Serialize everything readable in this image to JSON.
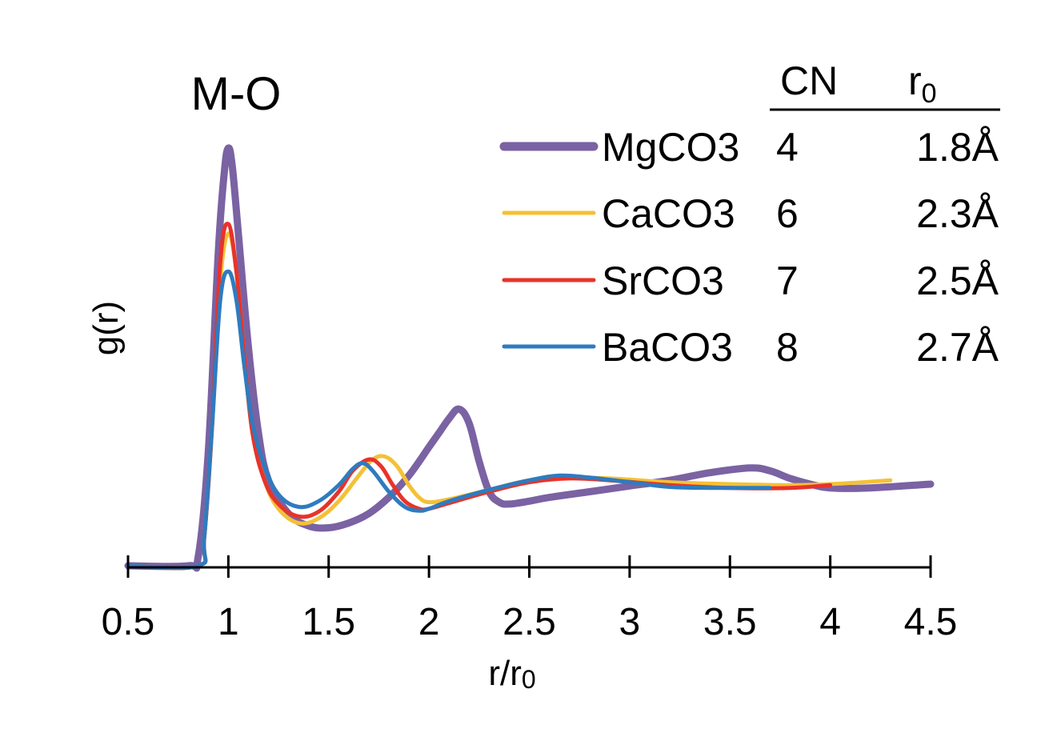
{
  "chart_data": {
    "type": "line",
    "title": "M-O",
    "xlabel": "r/r",
    "xlabel_sub": "0",
    "ylabel": "g(r)",
    "xlim": [
      0.5,
      4.5
    ],
    "ylim": [
      0,
      4.4
    ],
    "y_ticks_shown": false,
    "x_ticks": [
      "0.5",
      "1",
      "1.5",
      "2",
      "2.5",
      "3",
      "3.5",
      "4",
      "4.5"
    ],
    "x_tick_values": [
      0.5,
      1,
      1.5,
      2,
      2.5,
      3,
      3.5,
      4,
      4.5
    ],
    "grid": false,
    "legend_position": "top-right",
    "table": {
      "headers": [
        "CN",
        "r"
      ],
      "header_sub": "0",
      "rows": [
        [
          "4",
          "1.8Å"
        ],
        [
          "6",
          "2.3Å"
        ],
        [
          "7",
          "2.5Å"
        ],
        [
          "8",
          "2.7Å"
        ]
      ]
    },
    "series": [
      {
        "name": "MgCO3",
        "color": "#7a62a3",
        "x": [
          0.5,
          0.8,
          0.85,
          0.9,
          0.95,
          0.98,
          1.0,
          1.02,
          1.05,
          1.1,
          1.15,
          1.2,
          1.3,
          1.4,
          1.5,
          1.6,
          1.7,
          1.8,
          1.9,
          2.0,
          2.05,
          2.1,
          2.15,
          2.2,
          2.25,
          2.3,
          2.35,
          2.4,
          2.5,
          2.6,
          2.8,
          3.0,
          3.2,
          3.4,
          3.6,
          3.7,
          3.8,
          3.9,
          4.0,
          4.2,
          4.5
        ],
        "values": [
          0.0,
          0.0,
          0.1,
          1.2,
          3.3,
          4.15,
          4.4,
          4.2,
          3.5,
          2.3,
          1.4,
          0.9,
          0.55,
          0.42,
          0.4,
          0.45,
          0.55,
          0.72,
          0.95,
          1.25,
          1.4,
          1.55,
          1.65,
          1.5,
          1.1,
          0.78,
          0.67,
          0.65,
          0.68,
          0.72,
          0.78,
          0.84,
          0.9,
          0.98,
          1.03,
          1.0,
          0.92,
          0.86,
          0.82,
          0.82,
          0.86
        ]
      },
      {
        "name": "CaCO3",
        "color": "#f4c136",
        "x": [
          0.5,
          0.85,
          0.88,
          0.92,
          0.96,
          1.0,
          1.04,
          1.08,
          1.12,
          1.18,
          1.25,
          1.35,
          1.45,
          1.55,
          1.65,
          1.72,
          1.78,
          1.84,
          1.9,
          1.95,
          2.0,
          2.1,
          2.3,
          2.5,
          2.7,
          2.9,
          3.2,
          3.5,
          3.8,
          4.0,
          4.3
        ],
        "values": [
          0.0,
          0.0,
          0.3,
          1.5,
          3.0,
          3.5,
          3.1,
          2.2,
          1.4,
          0.9,
          0.6,
          0.45,
          0.5,
          0.68,
          0.95,
          1.12,
          1.15,
          1.05,
          0.85,
          0.72,
          0.67,
          0.7,
          0.8,
          0.9,
          0.93,
          0.92,
          0.88,
          0.86,
          0.85,
          0.86,
          0.9
        ]
      },
      {
        "name": "SrCO3",
        "color": "#e8332a",
        "x": [
          0.5,
          0.85,
          0.88,
          0.92,
          0.96,
          1.0,
          1.04,
          1.08,
          1.12,
          1.18,
          1.25,
          1.35,
          1.45,
          1.55,
          1.62,
          1.7,
          1.76,
          1.82,
          1.88,
          1.95,
          2.0,
          2.1,
          2.3,
          2.5,
          2.7,
          2.9,
          3.2,
          3.5,
          3.8,
          4.0
        ],
        "values": [
          0.0,
          0.0,
          0.3,
          1.5,
          3.2,
          3.6,
          3.1,
          2.2,
          1.4,
          0.9,
          0.65,
          0.52,
          0.57,
          0.78,
          1.0,
          1.12,
          1.05,
          0.85,
          0.68,
          0.6,
          0.6,
          0.66,
          0.78,
          0.88,
          0.92,
          0.9,
          0.85,
          0.82,
          0.82,
          0.85
        ]
      },
      {
        "name": "BaCO3",
        "color": "#2f7bbf",
        "x": [
          0.5,
          0.85,
          0.88,
          0.92,
          0.96,
          1.0,
          1.04,
          1.08,
          1.12,
          1.18,
          1.25,
          1.35,
          1.45,
          1.55,
          1.62,
          1.67,
          1.72,
          1.8,
          1.88,
          1.95,
          2.0,
          2.1,
          2.3,
          2.5,
          2.65,
          2.8,
          3.0,
          3.2,
          3.4,
          3.7
        ],
        "values": [
          0.0,
          0.0,
          0.3,
          1.5,
          2.8,
          3.1,
          2.8,
          2.1,
          1.5,
          1.05,
          0.75,
          0.62,
          0.68,
          0.85,
          1.02,
          1.08,
          1.0,
          0.78,
          0.62,
          0.58,
          0.6,
          0.68,
          0.8,
          0.9,
          0.95,
          0.93,
          0.88,
          0.83,
          0.82,
          0.82
        ]
      }
    ]
  }
}
